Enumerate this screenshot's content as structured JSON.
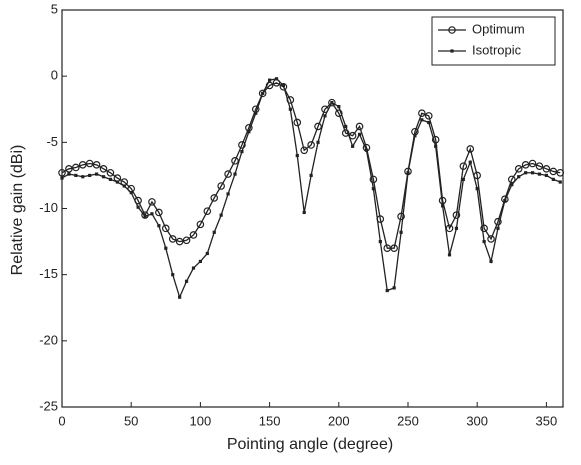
{
  "chart_data": {
    "type": "line",
    "x_label": "Pointing angle (degree)",
    "y_label": "Relative gain (dBi)",
    "x": [
      0,
      5,
      10,
      15,
      20,
      25,
      30,
      35,
      40,
      45,
      50,
      55,
      60,
      65,
      70,
      75,
      80,
      85,
      90,
      95,
      100,
      105,
      110,
      115,
      120,
      125,
      130,
      135,
      140,
      145,
      150,
      155,
      160,
      165,
      170,
      175,
      180,
      185,
      190,
      195,
      200,
      205,
      210,
      215,
      220,
      225,
      230,
      235,
      240,
      245,
      250,
      255,
      260,
      265,
      270,
      275,
      280,
      285,
      290,
      295,
      300,
      305,
      310,
      315,
      320,
      325,
      330,
      335,
      340,
      345,
      350,
      355,
      360
    ],
    "series": [
      {
        "name": "Optimum",
        "color": "#222",
        "marker": "circle",
        "values": [
          -7.3,
          -7.0,
          -6.9,
          -6.7,
          -6.6,
          -6.7,
          -7.0,
          -7.3,
          -7.7,
          -8.0,
          -8.5,
          -9.4,
          -10.5,
          -9.5,
          -10.3,
          -11.5,
          -12.3,
          -12.5,
          -12.4,
          -12.0,
          -11.2,
          -10.2,
          -9.2,
          -8.3,
          -7.4,
          -6.4,
          -5.2,
          -3.9,
          -2.5,
          -1.3,
          -0.7,
          -0.5,
          -0.8,
          -1.8,
          -3.5,
          -5.6,
          -5.2,
          -3.8,
          -2.5,
          -2.0,
          -2.8,
          -4.3,
          -4.5,
          -3.8,
          -5.4,
          -7.8,
          -10.8,
          -13.0,
          -13.0,
          -10.6,
          -7.2,
          -4.2,
          -2.8,
          -3.0,
          -4.8,
          -9.4,
          -11.5,
          -10.5,
          -6.8,
          -5.5,
          -7.5,
          -11.5,
          -12.3,
          -11.0,
          -9.3,
          -7.8,
          -7.0,
          -6.7,
          -6.6,
          -6.8,
          -7.0,
          -7.2,
          -7.3
        ]
      },
      {
        "name": "Isotropic",
        "color": "#222",
        "marker": "square",
        "values": [
          -7.7,
          -7.4,
          -7.5,
          -7.6,
          -7.5,
          -7.4,
          -7.6,
          -7.8,
          -8.0,
          -8.3,
          -8.8,
          -9.9,
          -10.6,
          -10.4,
          -11.3,
          -13.0,
          -15.0,
          -16.7,
          -15.5,
          -14.5,
          -14.0,
          -13.4,
          -11.8,
          -10.5,
          -8.9,
          -7.4,
          -5.7,
          -4.2,
          -2.8,
          -1.3,
          -0.3,
          -0.2,
          -0.7,
          -2.5,
          -6.0,
          -10.3,
          -7.5,
          -5.0,
          -3.0,
          -2.0,
          -2.3,
          -3.8,
          -5.3,
          -4.4,
          -5.6,
          -8.5,
          -12.5,
          -16.2,
          -16.0,
          -11.8,
          -7.3,
          -4.5,
          -3.3,
          -3.5,
          -5.3,
          -9.8,
          -13.5,
          -11.5,
          -7.8,
          -6.5,
          -8.5,
          -12.5,
          -14.0,
          -11.5,
          -9.4,
          -8.2,
          -7.6,
          -7.3,
          -7.3,
          -7.4,
          -7.5,
          -7.8,
          -8.0
        ]
      }
    ],
    "xlim": [
      0,
      362
    ],
    "xticks": [
      0,
      50,
      100,
      150,
      200,
      250,
      300,
      350
    ],
    "ylim": [
      -25,
      5
    ],
    "yticks": [
      -25,
      -20,
      -15,
      -10,
      -5,
      0,
      5
    ],
    "legend": "top-right"
  }
}
